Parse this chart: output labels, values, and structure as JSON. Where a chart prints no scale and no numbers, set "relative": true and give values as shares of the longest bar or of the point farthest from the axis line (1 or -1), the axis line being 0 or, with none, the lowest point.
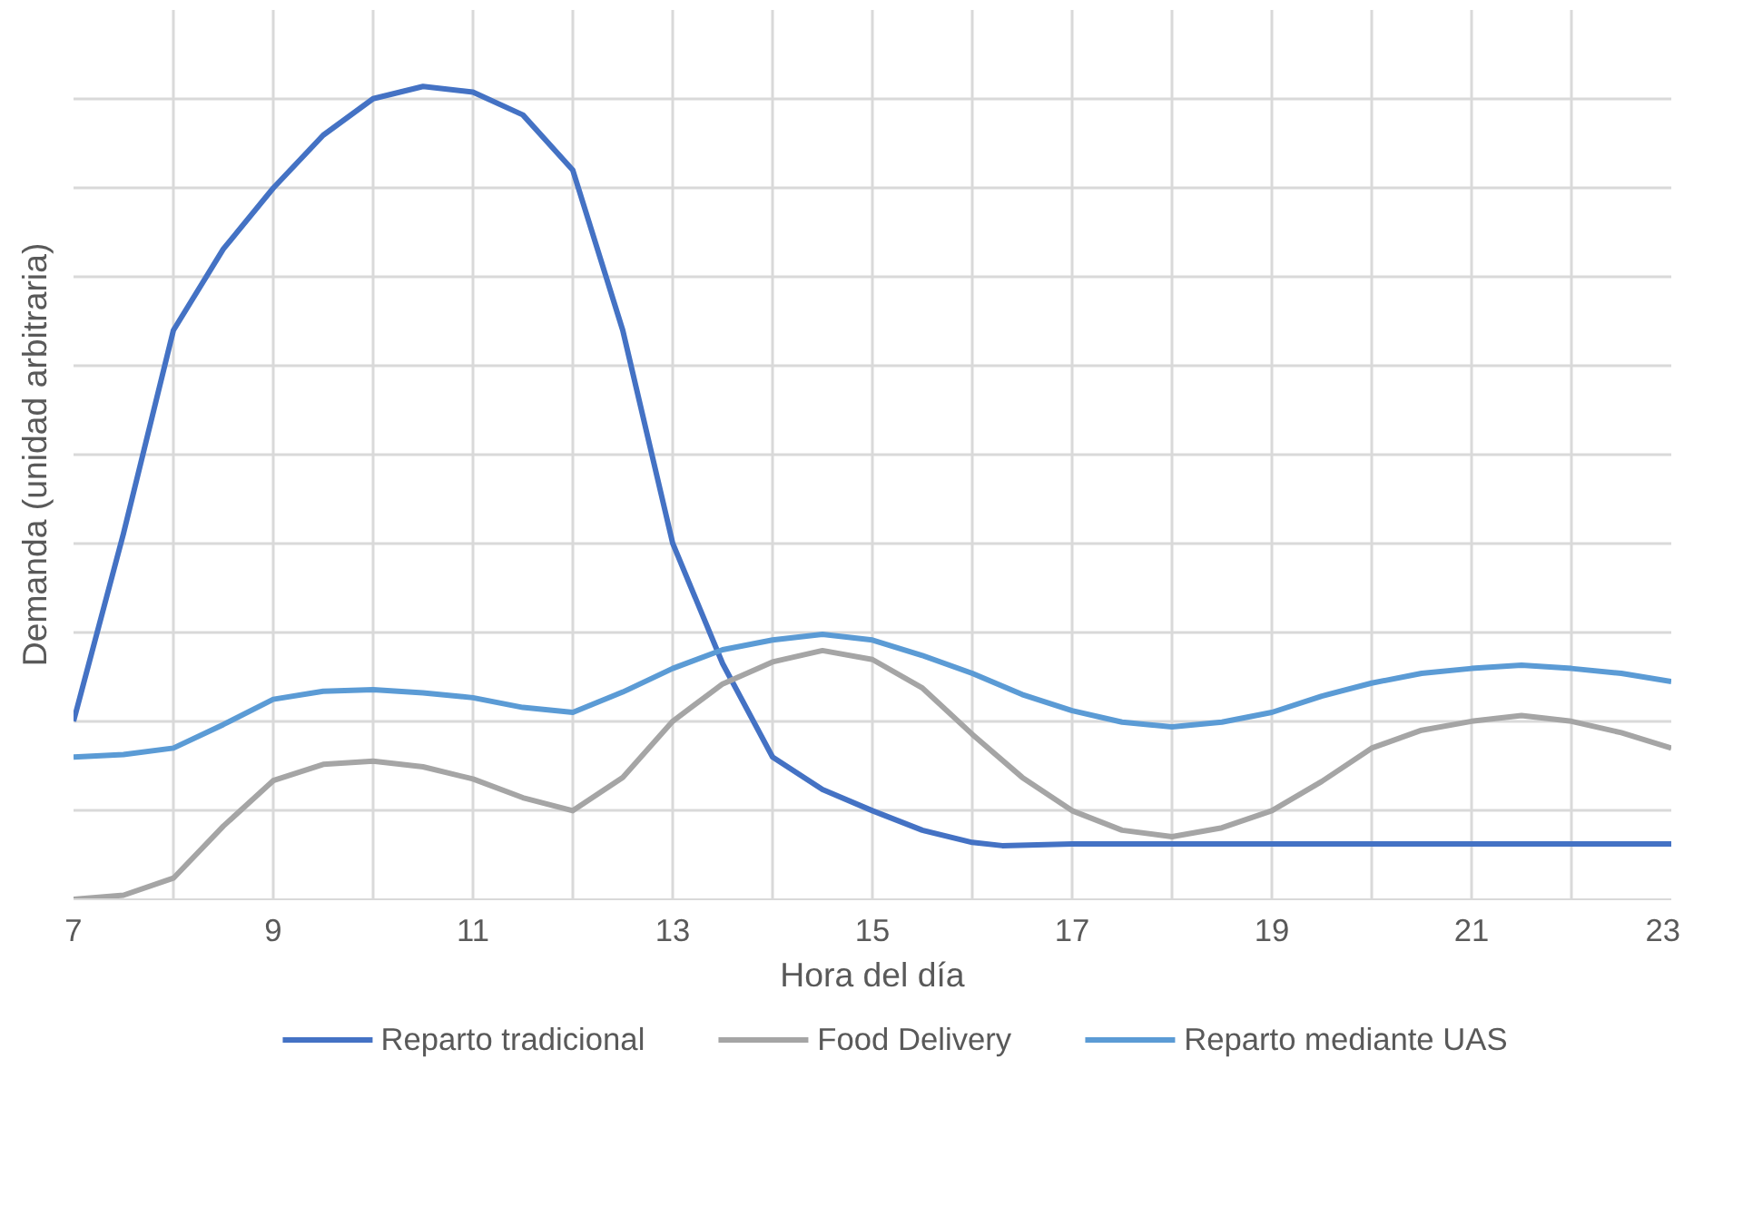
{
  "chart_data": {
    "type": "line",
    "relative": true,
    "xlabel": "Hora del día",
    "ylabel": "Demanda (unidad arbitraria)",
    "xlim": [
      7,
      23
    ],
    "xticks": [
      7,
      {
        "value": 8,
        "label": null
      },
      9,
      {
        "value": 10,
        "label": null
      },
      11,
      {
        "value": 12,
        "label": null
      },
      13,
      {
        "value": 14,
        "label": null
      },
      15,
      {
        "value": 16,
        "label": null
      },
      17,
      {
        "value": 18,
        "label": null
      },
      19,
      {
        "value": 20,
        "label": null
      },
      21,
      {
        "value": 22,
        "label": null
      },
      23
    ],
    "grid": true,
    "legend": "bottom",
    "line_style": "solid",
    "marker": "none",
    "series": [
      {
        "name": "Reparto tradicional",
        "color": "#4472c4",
        "x": [
          7,
          7.5,
          8,
          8.5,
          9,
          9.5,
          10,
          10.5,
          11,
          11.5,
          12,
          12.5,
          13,
          13.5,
          14,
          14.5,
          15,
          15.5,
          16,
          16.3,
          17,
          18,
          19,
          20,
          21,
          22,
          23
        ],
        "values": [
          0.219,
          0.45,
          0.7,
          0.8,
          0.875,
          0.94,
          0.985,
          1,
          0.993,
          0.965,
          0.897,
          0.7,
          0.438,
          0.29,
          0.175,
          0.135,
          0.109,
          0.085,
          0.07,
          0.066,
          0.068,
          0.068,
          0.068,
          0.068,
          0.068,
          0.068,
          0.068
        ]
      },
      {
        "name": "Food Delivery",
        "color": "#a5a5a5",
        "x": [
          7,
          7.5,
          8,
          8.5,
          9,
          9.5,
          10,
          10.5,
          11,
          11.5,
          12,
          12.5,
          13,
          13.5,
          14,
          14.5,
          15,
          15.5,
          16,
          16.5,
          17,
          17.5,
          18,
          18.5,
          19,
          19.5,
          20,
          20.5,
          21,
          21.5,
          22,
          22.5,
          23
        ],
        "values": [
          0,
          0.005,
          0.026,
          0.09,
          0.146,
          0.166,
          0.17,
          0.163,
          0.148,
          0.125,
          0.109,
          0.15,
          0.219,
          0.265,
          0.292,
          0.306,
          0.295,
          0.26,
          0.203,
          0.15,
          0.109,
          0.085,
          0.077,
          0.088,
          0.109,
          0.145,
          0.186,
          0.208,
          0.219,
          0.226,
          0.219,
          0.205,
          0.186
        ]
      },
      {
        "name": "Reparto mediante UAS",
        "color": "#5b9bd5",
        "x": [
          7,
          7.5,
          8,
          8.5,
          9,
          9.5,
          10,
          10.5,
          11,
          11.5,
          12,
          12.5,
          13,
          13.5,
          14,
          14.5,
          15,
          15.5,
          16,
          16.5,
          17,
          17.5,
          18,
          18.5,
          19,
          19.5,
          20,
          20.5,
          21,
          21.5,
          22,
          22.5,
          23
        ],
        "values": [
          0.175,
          0.178,
          0.186,
          0.215,
          0.246,
          0.256,
          0.258,
          0.254,
          0.248,
          0.236,
          0.23,
          0.255,
          0.284,
          0.307,
          0.319,
          0.326,
          0.319,
          0.3,
          0.278,
          0.252,
          0.232,
          0.218,
          0.212,
          0.218,
          0.23,
          0.25,
          0.266,
          0.278,
          0.284,
          0.288,
          0.284,
          0.278,
          0.268
        ]
      }
    ]
  }
}
